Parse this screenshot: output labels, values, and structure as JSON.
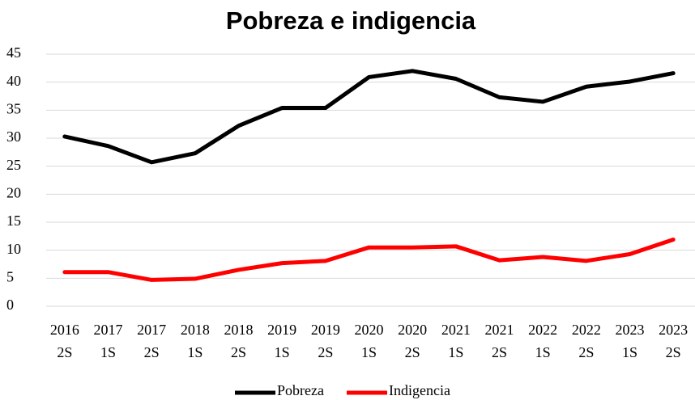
{
  "chart_data": {
    "type": "line",
    "title": "Pobreza e indigencia",
    "categories": [
      [
        "2016",
        "2S"
      ],
      [
        "2017",
        "1S"
      ],
      [
        "2017",
        "2S"
      ],
      [
        "2018",
        "1S"
      ],
      [
        "2018",
        "2S"
      ],
      [
        "2019",
        "1S"
      ],
      [
        "2019",
        "2S"
      ],
      [
        "2020",
        "1S"
      ],
      [
        "2020",
        "2S"
      ],
      [
        "2021",
        "1S"
      ],
      [
        "2021",
        "2S"
      ],
      [
        "2022",
        "1S"
      ],
      [
        "2022",
        "2S"
      ],
      [
        "2023",
        "1S"
      ],
      [
        "2023",
        "2S"
      ]
    ],
    "series": [
      {
        "name": "Pobreza",
        "color": "#000000",
        "values": [
          30.3,
          28.6,
          25.7,
          27.3,
          32.2,
          35.4,
          35.4,
          40.9,
          42.0,
          40.6,
          37.3,
          36.5,
          39.2,
          40.1,
          41.6
        ]
      },
      {
        "name": "Indigencia",
        "color": "#ff0000",
        "values": [
          6.1,
          6.1,
          4.7,
          4.9,
          6.5,
          7.7,
          8.1,
          10.5,
          10.5,
          10.7,
          8.2,
          8.8,
          8.1,
          9.3,
          11.9
        ]
      }
    ],
    "ylim": [
      0,
      45
    ],
    "yticks": [
      0,
      5,
      10,
      15,
      20,
      25,
      30,
      35,
      40,
      45
    ],
    "grid": true,
    "legend": "bottom"
  }
}
